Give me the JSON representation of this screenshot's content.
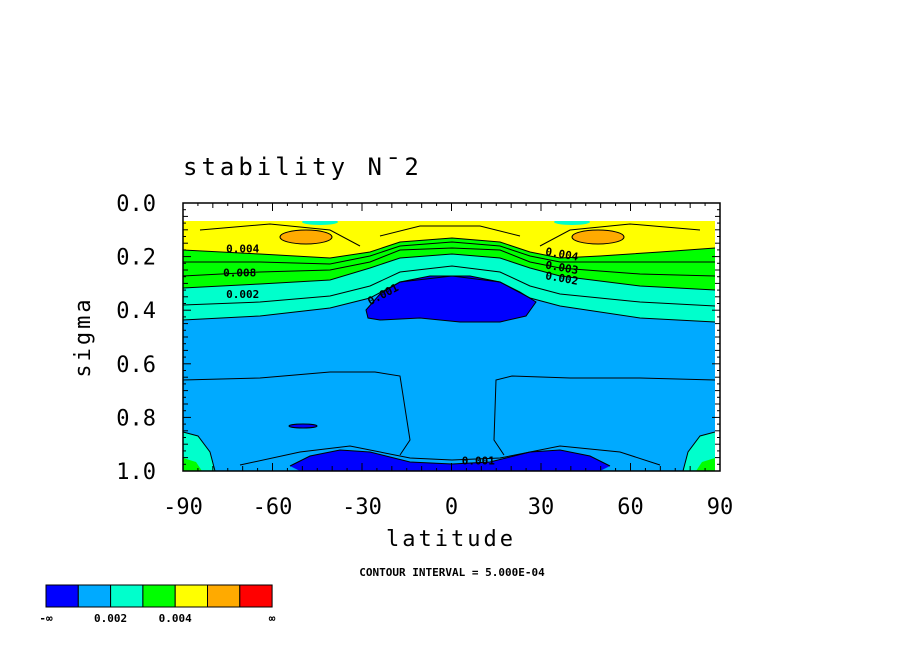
{
  "chart_data": {
    "type": "heatmap",
    "title": "stability N¯2",
    "xlabel": "latitude",
    "ylabel": "sigma",
    "xlim": [
      -90,
      90
    ],
    "ylim": [
      0.0,
      1.0
    ],
    "y_inverted": true,
    "x_ticks": [
      "-90",
      "-60",
      "-30",
      "0",
      "30",
      "60",
      "90"
    ],
    "y_ticks": [
      "0.0",
      "0.2",
      "0.4",
      "0.6",
      "0.8",
      "1.0"
    ],
    "contour_interval_text": "CONTOUR INTERVAL = 5.000E-04",
    "contour_labels": [
      {
        "text": "0.004",
        "lat": -70,
        "sigma": 0.17
      },
      {
        "text": "0.008",
        "lat": -71,
        "sigma": 0.26
      },
      {
        "text": "0.002",
        "lat": -70,
        "sigma": 0.34
      },
      {
        "text": "0.001",
        "lat": -23,
        "sigma": 0.34
      },
      {
        "text": "0.004",
        "lat": 37,
        "sigma": 0.19
      },
      {
        "text": "0.003",
        "lat": 37,
        "sigma": 0.24
      },
      {
        "text": "0.002",
        "lat": 37,
        "sigma": 0.28
      },
      {
        "text": "0.001",
        "lat": 9,
        "sigma": 0.96
      }
    ],
    "colorbar": {
      "colors": [
        "#0000ff",
        "#00aaff",
        "#00ffcc",
        "#00ff00",
        "#ffff00",
        "#ffaa00",
        "#ff0000"
      ],
      "labels": [
        "-∞",
        "0.002",
        "0.004",
        "∞"
      ]
    }
  }
}
